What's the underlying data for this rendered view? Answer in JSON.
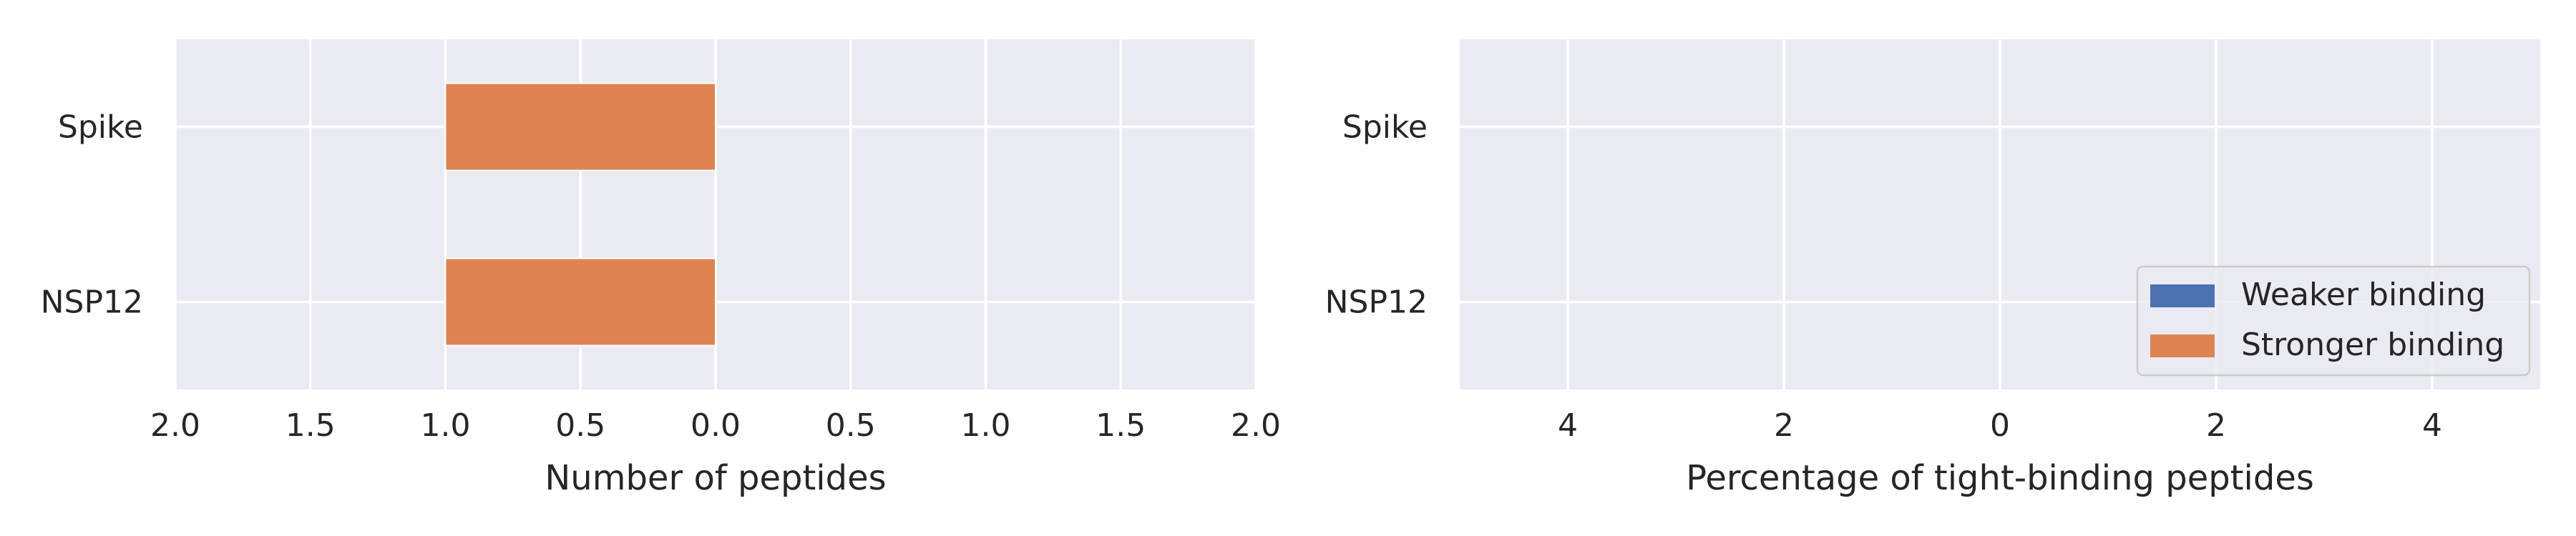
{
  "chart_data": [
    {
      "type": "bar",
      "orientation": "horizontal",
      "title": "",
      "xlabel": "Number of peptides",
      "ylabel": "",
      "categories": [
        "Spike",
        "NSP12"
      ],
      "series": [
        {
          "name": "Weaker binding",
          "color": "#4c72b0",
          "values": [
            0,
            0
          ]
        },
        {
          "name": "Stronger binding",
          "color": "#dd8452",
          "values": [
            -1,
            -1
          ]
        }
      ],
      "xlim": [
        -2,
        2
      ],
      "xticks": [
        -2,
        -1.5,
        -1,
        -0.5,
        0,
        0.5,
        1,
        1.5,
        2
      ],
      "xtick_labels": [
        "2.0",
        "1.5",
        "1.0",
        "0.5",
        "0.0",
        "0.5",
        "1.0",
        "1.5",
        "2.0"
      ],
      "grid": true,
      "legend": "none"
    },
    {
      "type": "bar",
      "orientation": "horizontal",
      "title": "",
      "xlabel": "Percentage of tight-binding peptides",
      "ylabel": "",
      "categories": [
        "Spike",
        "NSP12"
      ],
      "series": [
        {
          "name": "Weaker binding",
          "color": "#4c72b0",
          "values": [
            0,
            0
          ]
        },
        {
          "name": "Stronger binding",
          "color": "#dd8452",
          "values": [
            0,
            0
          ]
        }
      ],
      "xlim": [
        -5,
        5
      ],
      "xticks": [
        -4,
        -2,
        0,
        2,
        4
      ],
      "xtick_labels": [
        "4",
        "2",
        "0",
        "2",
        "4"
      ],
      "grid": true,
      "legend": "lower right"
    }
  ],
  "style": {
    "plot_background": "#eaeaf2",
    "grid_color": "#ffffff",
    "text_color": "#262626"
  }
}
